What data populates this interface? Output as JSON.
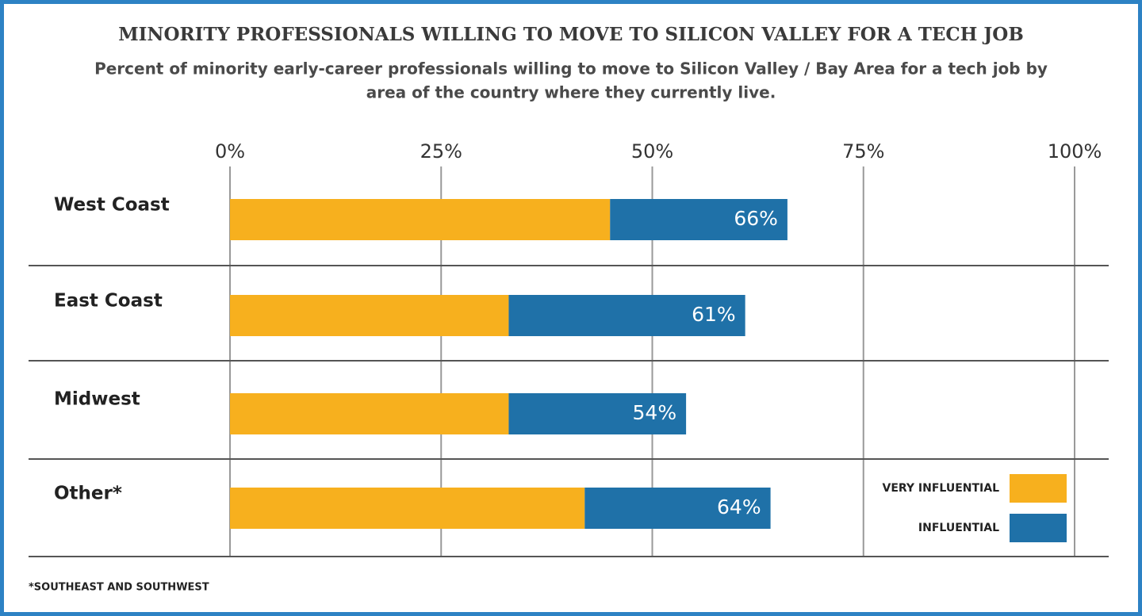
{
  "chart_data": {
    "type": "stacked-bar-horizontal",
    "title": "MINORITY PROFESSIONALS WILLING TO MOVE TO SILICON VALLEY FOR A TECH JOB",
    "subtitle": [
      "Percent of minority early-career professionals willing to move to Silicon Valley / Bay Area for a tech job by",
      "area of the country where they currently live."
    ],
    "categories": [
      "West Coast",
      "East Coast",
      "Midwest",
      "Other*"
    ],
    "series": [
      {
        "name": "VERY INFLUENTIAL",
        "color": "#f7b01e",
        "values": [
          45,
          33,
          33,
          42
        ]
      },
      {
        "name": "INFLUENTIAL",
        "color": "#1f71a8",
        "values": [
          21,
          28,
          21,
          22
        ]
      }
    ],
    "totals": [
      66,
      61,
      54,
      64
    ],
    "total_labels": [
      "66%",
      "61%",
      "54%",
      "64%"
    ],
    "xlim": [
      0,
      100
    ],
    "xticks": [
      {
        "value": 0,
        "label": "0%"
      },
      {
        "value": 25,
        "label": "25%"
      },
      {
        "value": 50,
        "label": "50%"
      },
      {
        "value": 75,
        "label": "75%"
      },
      {
        "value": 100,
        "label": "100%"
      }
    ],
    "grid": true,
    "legend": "bottom-right",
    "footnote": "*SOUTHEAST AND SOUTHWEST"
  }
}
